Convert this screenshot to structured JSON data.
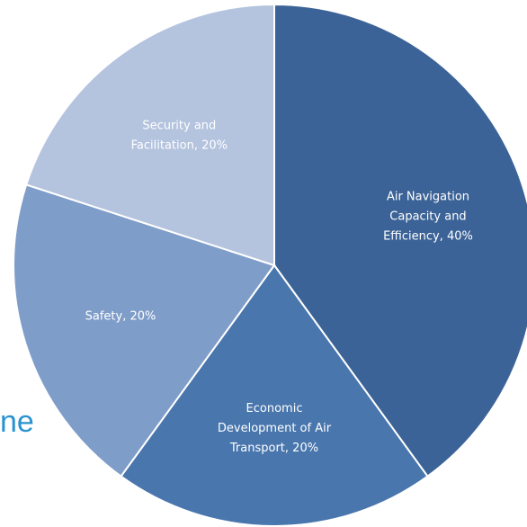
{
  "background_text_fragment": "ne",
  "chart_data": {
    "type": "pie",
    "title": "",
    "slices": [
      {
        "label": "Air Navigation Capacity and Efficiency, 40%",
        "lines": [
          "Air Navigation",
          "Capacity and",
          "Efficiency, 40%"
        ],
        "value": 40,
        "color": "#3c6397"
      },
      {
        "label": "Economic Development of Air Transport, 20%",
        "lines": [
          "Economic",
          "Development of Air",
          "Transport, 20%"
        ],
        "value": 20,
        "color": "#4876ad"
      },
      {
        "label": "Safety, 20%",
        "lines": [
          "Safety, 20%"
        ],
        "value": 20,
        "color": "#7f9dc9"
      },
      {
        "label": "Security and Facilitation, 20%",
        "lines": [
          "Security and",
          "Facilitation, 20%"
        ],
        "value": 20,
        "color": "#b4c3de"
      }
    ],
    "slice_border_color": "#ffffff",
    "label_color": "#ffffff",
    "start_angle_deg": 0,
    "direction": "clockwise"
  }
}
